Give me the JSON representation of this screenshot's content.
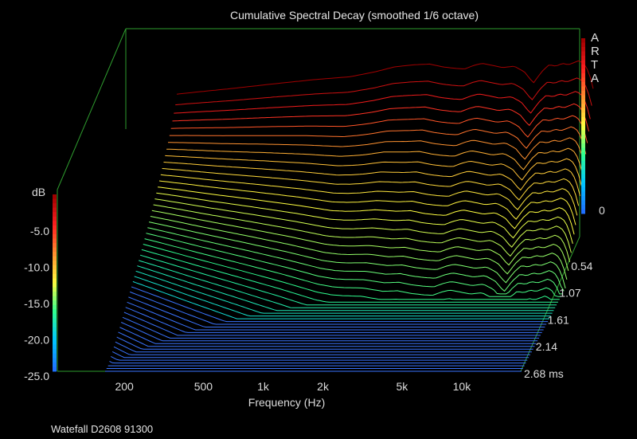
{
  "chart_data": {
    "type": "waterfall",
    "title": "Cumulative Spectral Decay (smoothed 1/6 octave)",
    "xlabel": "Frequency (Hz)",
    "x_scale": "log",
    "x_ticks": [
      {
        "value": 200,
        "label": "200"
      },
      {
        "value": 500,
        "label": "500"
      },
      {
        "value": 1000,
        "label": "1k"
      },
      {
        "value": 2000,
        "label": "2k"
      },
      {
        "value": 5000,
        "label": "5k"
      },
      {
        "value": 10000,
        "label": "10k"
      }
    ],
    "xlim": [
      160,
      20000
    ],
    "ylabel": "dB",
    "y_ticks": [
      "0",
      "-5.0",
      "-10.0",
      "-15.0",
      "-20.0",
      "-25.0"
    ],
    "ylim": [
      -25,
      0
    ],
    "time_unit": "ms",
    "time_ticks": [
      "0.54",
      "1.07",
      "1.61",
      "2.14",
      "2.68 ms"
    ],
    "time_range": [
      0,
      2.68
    ],
    "brand": [
      "A",
      "R",
      "T",
      "A"
    ],
    "footer": "Watefall D2608 91300",
    "colormap": [
      "#2070ff",
      "#00c8ff",
      "#30ff90",
      "#ffff40",
      "#ff9030",
      "#ff2020",
      "#a00000"
    ],
    "slice_count": 50,
    "base_response": {
      "freq": [
        160,
        200,
        300,
        500,
        800,
        1200,
        1600,
        2000,
        2500,
        3000,
        3500,
        4000,
        4500,
        5000,
        5500,
        6000,
        7000,
        8000,
        9000,
        10000,
        11000,
        12000,
        13000,
        14000,
        15000,
        16000,
        17000,
        18000,
        19000,
        20000
      ],
      "db": [
        -4.8,
        -4.5,
        -4.0,
        -3.3,
        -2.7,
        -2.3,
        -1.6,
        -0.9,
        -0.6,
        -0.5,
        -0.9,
        -1.1,
        -1.2,
        -0.7,
        -0.4,
        -0.6,
        -1.0,
        -0.8,
        -1.6,
        -3.2,
        -1.6,
        -0.6,
        -0.8,
        -0.4,
        -0.6,
        -0.3,
        0.0,
        -0.5,
        -1.6,
        -4.0
      ]
    }
  }
}
